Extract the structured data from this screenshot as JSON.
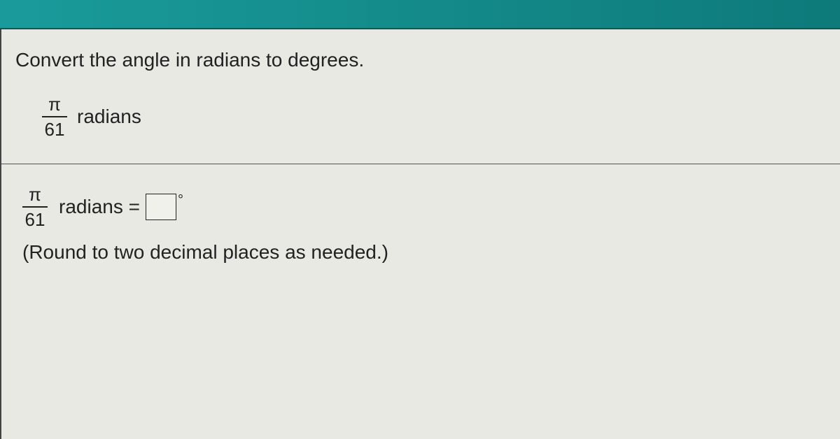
{
  "header": {
    "bar_color_left": "#1a9b9b",
    "bar_color_right": "#0e7a7a"
  },
  "question": {
    "prompt": "Convert the angle in radians to degrees.",
    "fraction": {
      "numerator": "π",
      "denominator": "61"
    },
    "unit": "radians"
  },
  "answer": {
    "fraction": {
      "numerator": "π",
      "denominator": "61"
    },
    "expression": "radians =",
    "input_value": "",
    "degree_symbol": "°",
    "hint": "(Round to two decimal places as needed.)"
  },
  "style": {
    "background": "#e8e9e2",
    "text_color": "#222",
    "font_size_main": 28,
    "divider_color": "#555",
    "input_border": "#222"
  }
}
